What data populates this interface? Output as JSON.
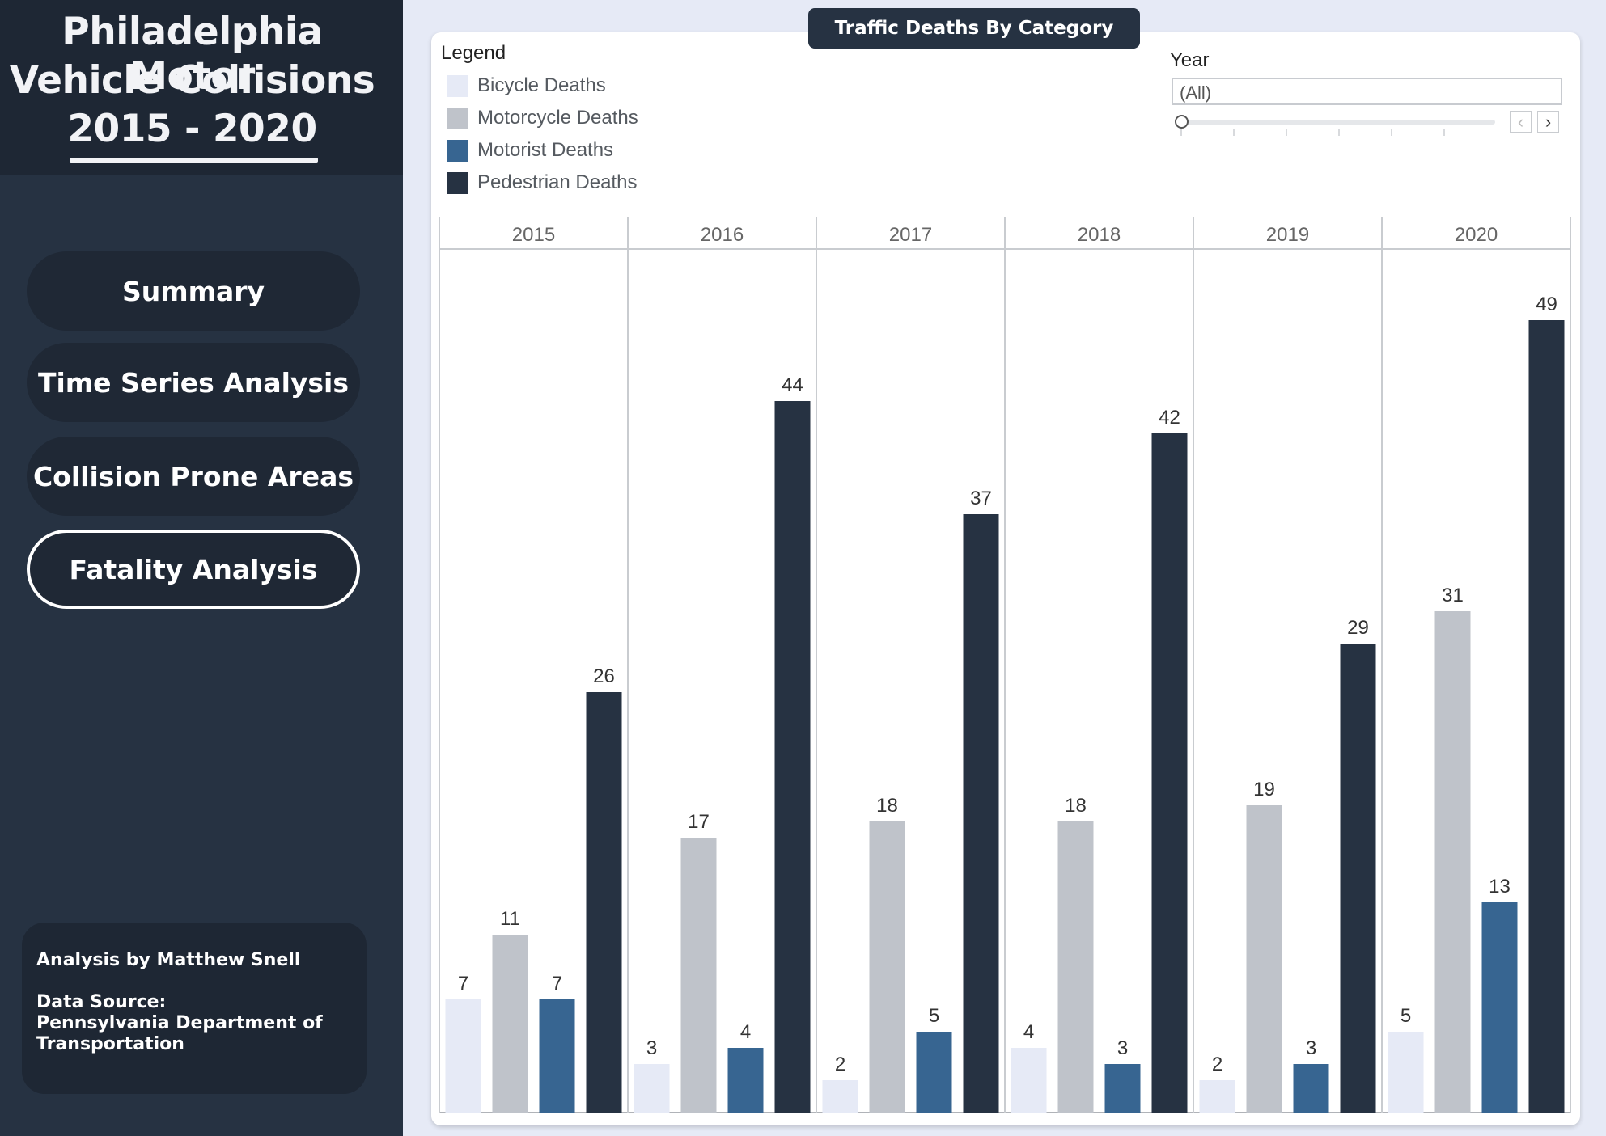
{
  "sidebar": {
    "title_lines": [
      "Philadelphia Motor",
      "Vehicle Collisions",
      "2015 - 2020"
    ],
    "nav": [
      "Summary",
      "Time Series Analysis",
      "Collision Prone Areas",
      "Fatality Analysis"
    ],
    "active_nav": "Fatality Analysis",
    "credit_author": "Analysis by Matthew Snell",
    "credit_source_label": "Data Source:",
    "credit_source": "Pennsylvania Department of Transportation"
  },
  "panel": {
    "title": "Traffic Deaths By Category",
    "legend_title": "Legend",
    "filter": {
      "label": "Year",
      "value": "(All)",
      "prev_icon": "chevron-left-icon",
      "next_icon": "chevron-right-icon"
    }
  },
  "colors": {
    "sidebar_bg": "#263242",
    "title_bg": "#1e2734",
    "bicycle": "#e6eaf6",
    "motorcycle": "#bfc3ca",
    "motorist": "#376591",
    "pedestrian": "#263242"
  },
  "chart_data": {
    "type": "bar",
    "categories": [
      "2015",
      "2016",
      "2017",
      "2018",
      "2019",
      "2020"
    ],
    "series": [
      {
        "name": "Bicycle Deaths",
        "color": "#e6eaf6",
        "values": [
          7,
          3,
          2,
          4,
          2,
          5
        ]
      },
      {
        "name": "Motorcycle Deaths",
        "color": "#bfc3ca",
        "values": [
          11,
          17,
          18,
          18,
          19,
          31
        ]
      },
      {
        "name": "Motorist Deaths",
        "color": "#376591",
        "values": [
          7,
          4,
          5,
          3,
          3,
          13
        ]
      },
      {
        "name": "Pedestrian Deaths",
        "color": "#263242",
        "values": [
          26,
          44,
          37,
          42,
          29,
          49
        ]
      }
    ],
    "ylim": [
      0,
      55
    ],
    "grid": false,
    "legend_position": "top-left",
    "data_labels": true
  }
}
